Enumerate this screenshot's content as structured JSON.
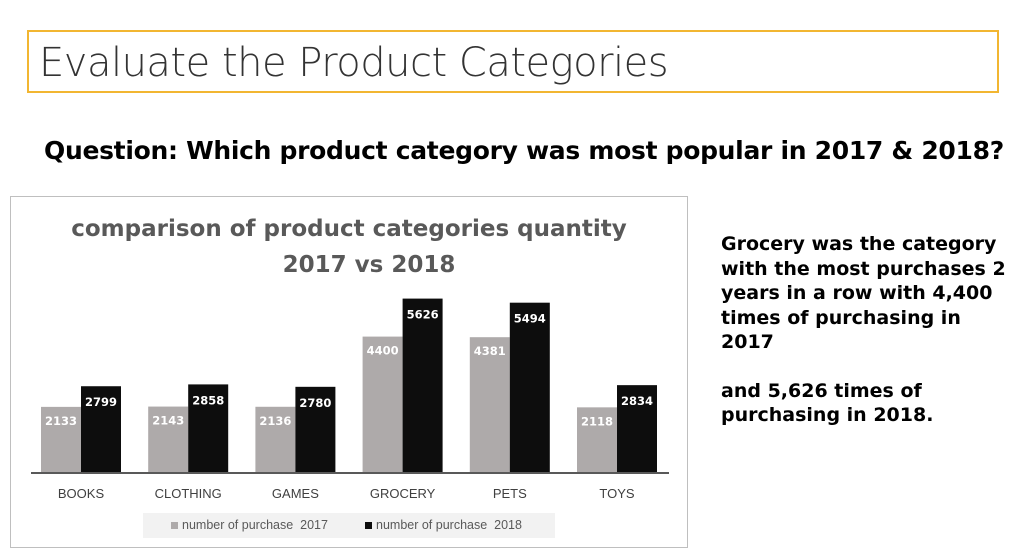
{
  "slide": {
    "title": "Evaluate the Product Categories",
    "question": "Question: Which product category was most popular in 2017 & 2018?",
    "answer_part1": "Grocery was the category with the most purchases 2 years in a row with 4,400 times of purchasing in 2017",
    "answer_part2": "and 5,626 times of purchasing in 2018."
  },
  "chart_data": {
    "type": "bar",
    "title_line1": "comparison of product categories quantity",
    "title_line2": "2017 vs 2018",
    "categories": [
      "BOOKS",
      "CLOTHING",
      "GAMES",
      "GROCERY",
      "PETS",
      "TOYS"
    ],
    "series": [
      {
        "name": "number of purchase  2017",
        "values": [
          2133,
          2143,
          2136,
          4400,
          4381,
          2118
        ],
        "color": "#aeaaaa"
      },
      {
        "name": "number of purchase  2018",
        "values": [
          2799,
          2858,
          2780,
          5626,
          5494,
          2834
        ],
        "color": "#0d0d0d"
      }
    ],
    "ylim": [
      0,
      6000
    ],
    "grid": false,
    "legend_position": "bottom",
    "data_labels": true
  }
}
